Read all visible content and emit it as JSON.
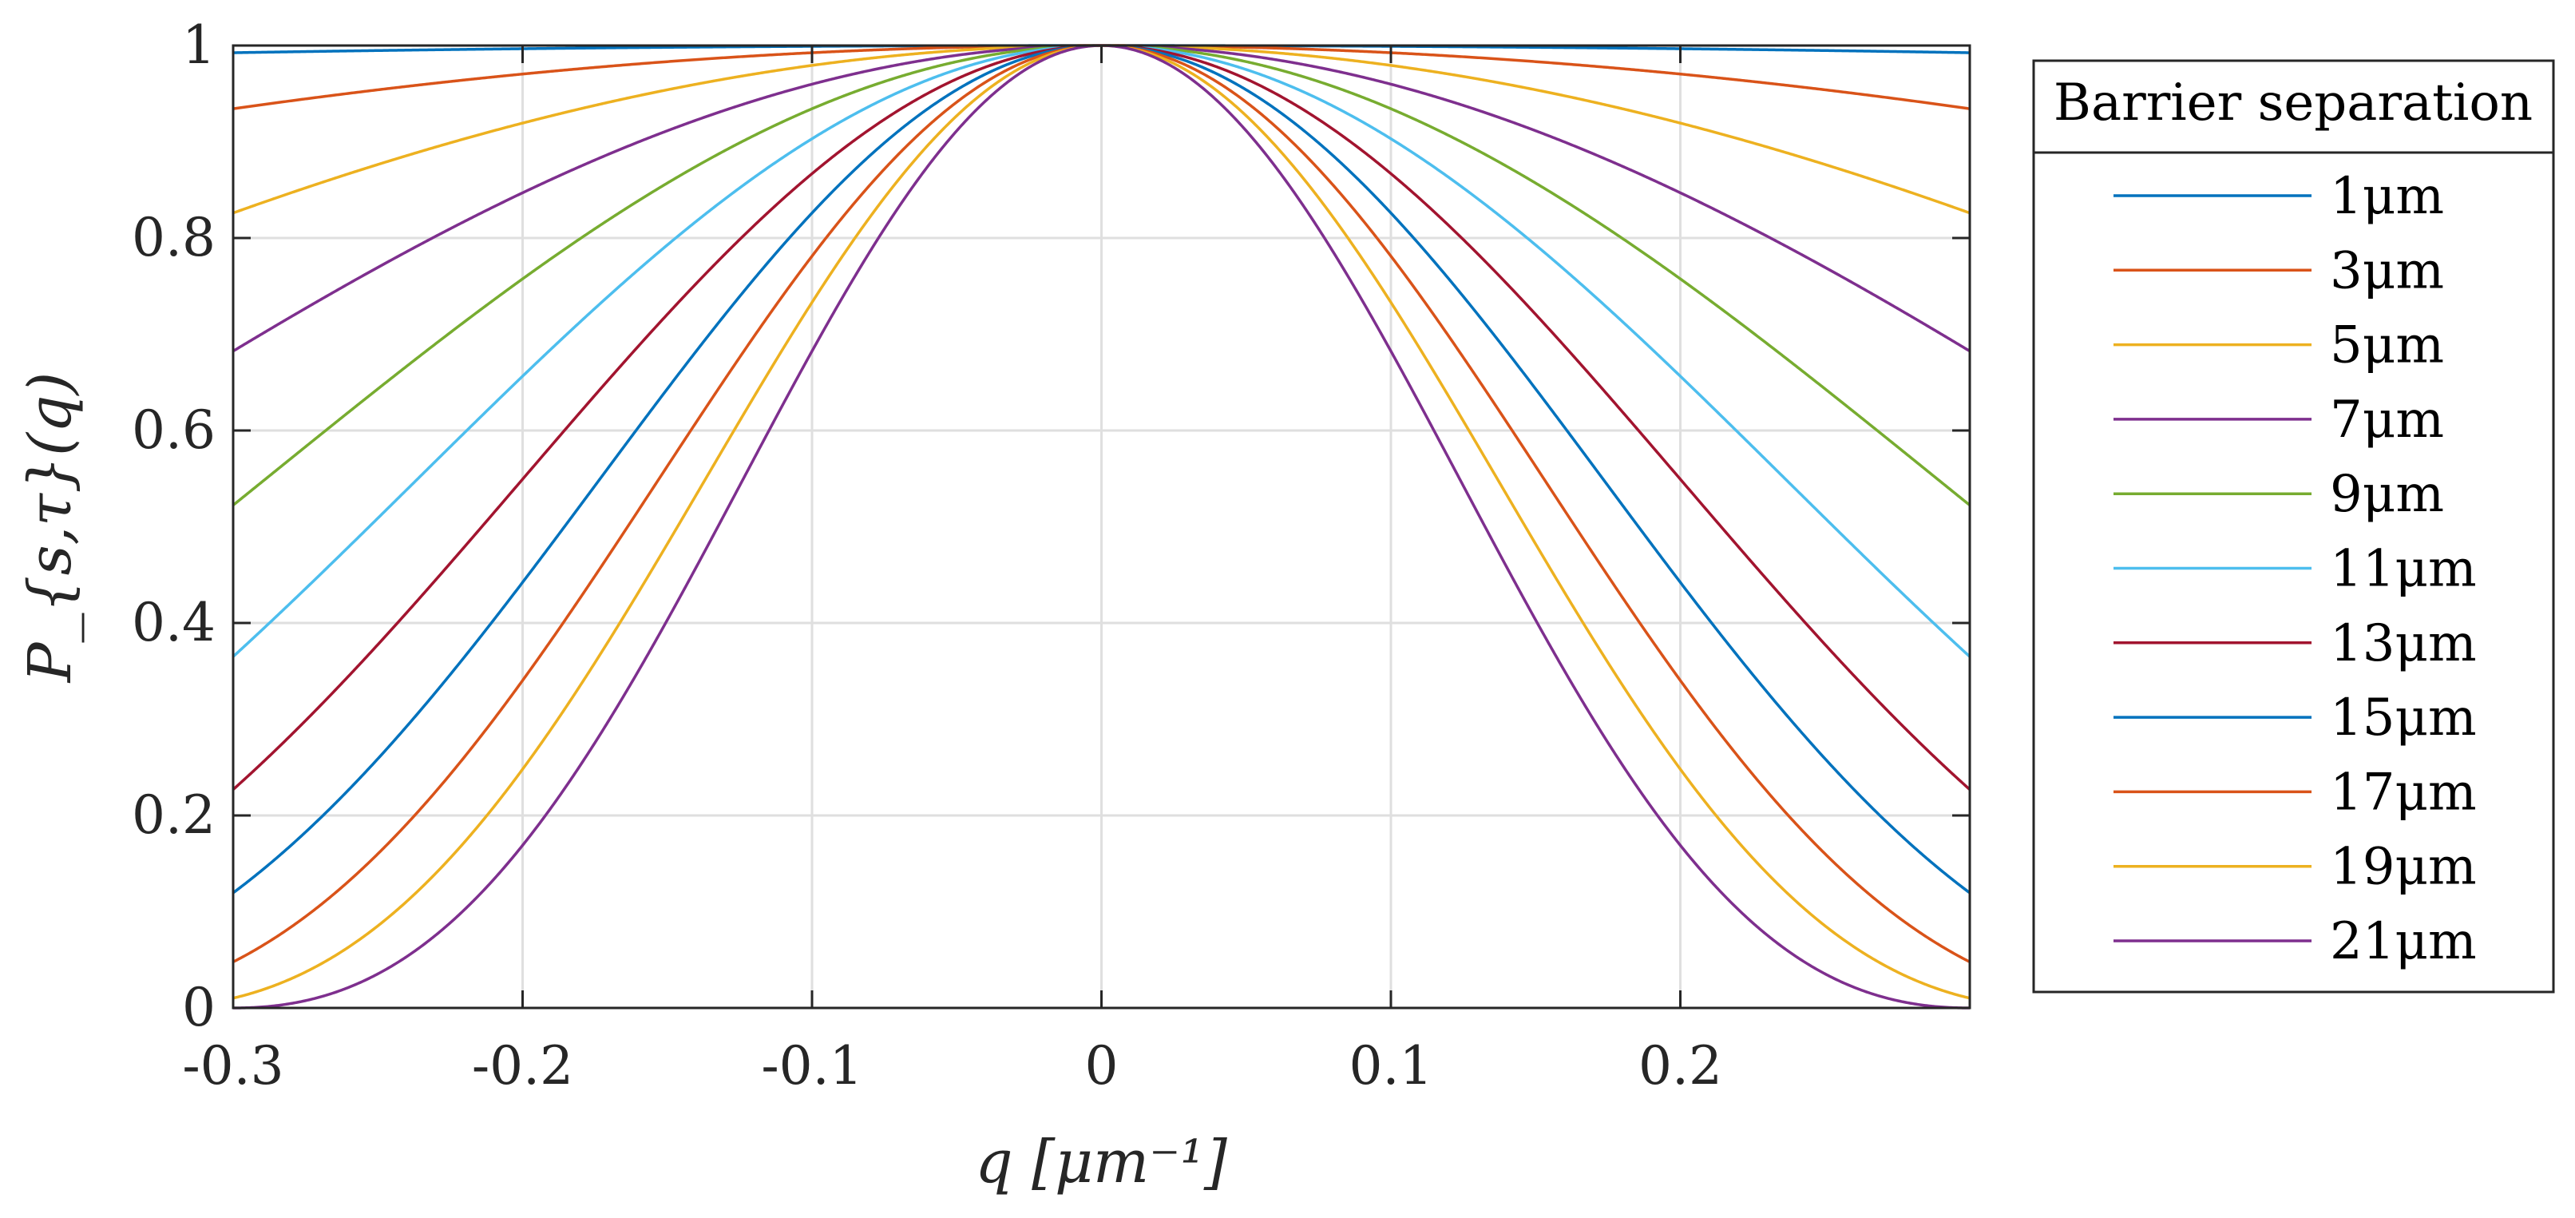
{
  "chart_data": {
    "type": "line",
    "title": "",
    "xlabel": "q [μm⁻¹]",
    "ylabel": "P_{s,τ}(q)",
    "xlim": [
      -0.3,
      0.3
    ],
    "ylim": [
      0,
      1
    ],
    "grid": true,
    "x_tick_values": [
      -0.3,
      -0.2,
      -0.1,
      0,
      0.1,
      0.2
    ],
    "x_tick_labels": [
      "-0.3",
      "-0.2",
      "-0.1",
      "0",
      "0.1",
      "0.2"
    ],
    "y_tick_values": [
      0,
      0.2,
      0.4,
      0.6,
      0.8,
      1
    ],
    "y_tick_labels": [
      "0",
      "0.2",
      "0.4",
      "0.6",
      "0.8",
      "1"
    ],
    "function": "sinc^2(q*L/2)",
    "legend": {
      "title": "Barrier separation",
      "placement": "outside-right"
    },
    "series": [
      {
        "name": "1μm",
        "separation": 1,
        "color": "#0072BD"
      },
      {
        "name": "3μm",
        "separation": 3,
        "color": "#D95319"
      },
      {
        "name": "5μm",
        "separation": 5,
        "color": "#EDB120"
      },
      {
        "name": "7μm",
        "separation": 7,
        "color": "#7E2F8E"
      },
      {
        "name": "9μm",
        "separation": 9,
        "color": "#77AC30"
      },
      {
        "name": "11μm",
        "separation": 11,
        "color": "#4DBEEE"
      },
      {
        "name": "13μm",
        "separation": 13,
        "color": "#A2142F"
      },
      {
        "name": "15μm",
        "separation": 15,
        "color": "#0072BD"
      },
      {
        "name": "17μm",
        "separation": 17,
        "color": "#D95319"
      },
      {
        "name": "19μm",
        "separation": 19,
        "color": "#EDB120"
      },
      {
        "name": "21μm",
        "separation": 21,
        "color": "#7E2F8E"
      }
    ]
  }
}
